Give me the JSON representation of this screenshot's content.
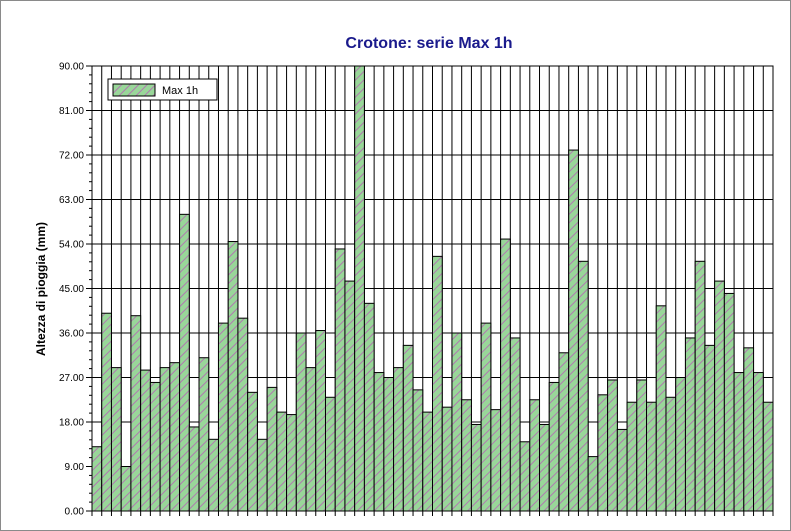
{
  "chart_data": {
    "type": "bar",
    "title": "Crotone: serie Max 1h",
    "xlabel": "",
    "ylabel": "Altezza di pioggia (mm)",
    "ylim": [
      0,
      90
    ],
    "yticks": [
      "0.00",
      "9.00",
      "18.00",
      "27.00",
      "36.00",
      "45.00",
      "54.00",
      "63.00",
      "72.00",
      "81.00",
      "90.00"
    ],
    "grid": true,
    "legend_position": "top-left",
    "series": [
      {
        "name": "Max 1h",
        "fill_color": "#99d699",
        "hatch_color": "#b07ab0",
        "values": [
          13,
          40,
          29,
          9,
          39.5,
          28.5,
          26,
          29,
          30,
          60,
          17,
          31,
          14.5,
          38,
          54.5,
          39,
          24,
          14.5,
          25,
          20,
          19.5,
          36,
          29,
          36.5,
          23,
          53,
          46.5,
          90,
          42,
          28,
          27,
          29,
          33.5,
          24.5,
          20,
          51.5,
          21,
          36,
          22.5,
          17.5,
          38,
          20.5,
          55,
          35,
          14,
          22.5,
          17.5,
          26,
          32,
          73,
          50.5,
          11,
          23.5,
          26.5,
          16.5,
          22,
          26.5,
          22,
          41.5,
          23,
          27,
          35,
          50.5,
          33.5,
          46.5,
          44,
          28,
          33,
          28,
          22
        ]
      }
    ]
  }
}
